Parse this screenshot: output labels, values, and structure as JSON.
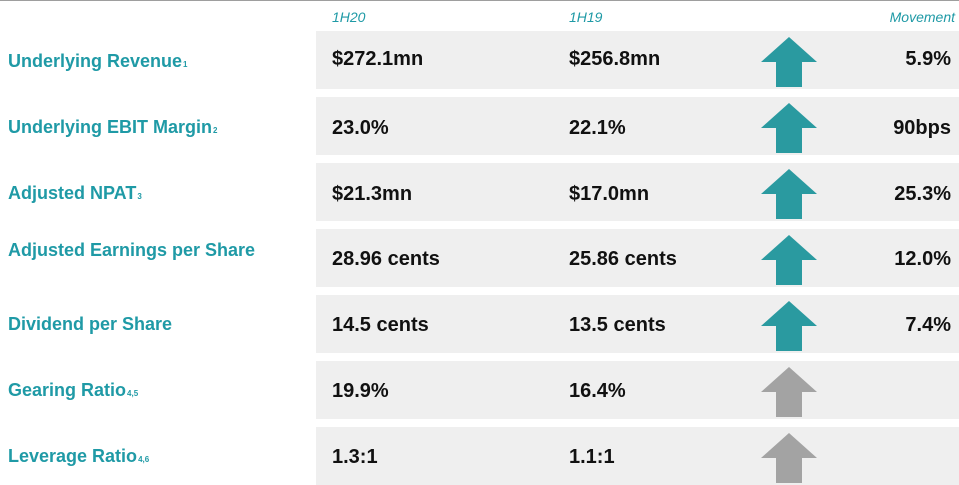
{
  "headers": {
    "current": "1H20",
    "prior": "1H19",
    "movement": "Movement"
  },
  "colors": {
    "label": "#1f9aa6",
    "arrow_up": "#2a9aa0",
    "arrow_neutral": "#a3a3a3",
    "band": "#efefef"
  },
  "rows": [
    {
      "label": "Underlying Revenue",
      "note": "1",
      "current": "$272.1mn",
      "prior": "$256.8mn",
      "movement": "5.9%",
      "arrow": "arrow-up-teal-icon"
    },
    {
      "label": "Underlying EBIT Margin",
      "note": "2",
      "current": "23.0%",
      "prior": "22.1%",
      "movement": "90bps",
      "arrow": "arrow-up-teal-icon"
    },
    {
      "label": "Adjusted NPAT",
      "note": "3",
      "current": "$21.3mn",
      "prior": "$17.0mn",
      "movement": "25.3%",
      "arrow": "arrow-up-teal-icon"
    },
    {
      "label": "Adjusted Earnings per Share",
      "note": "",
      "current": "28.96 cents",
      "prior": "25.86 cents",
      "movement": "12.0%",
      "arrow": "arrow-up-teal-icon"
    },
    {
      "label": "Dividend per Share",
      "note": "",
      "current": "14.5 cents",
      "prior": "13.5 cents",
      "movement": "7.4%",
      "arrow": "arrow-up-teal-icon"
    },
    {
      "label": "Gearing Ratio",
      "note": "4,5",
      "current": "19.9%",
      "prior": "16.4%",
      "movement": "",
      "arrow": "arrow-up-grey-icon"
    },
    {
      "label": "Leverage Ratio",
      "note": "4,6",
      "current": "1.3:1",
      "prior": "1.1:1",
      "movement": "",
      "arrow": "arrow-up-grey-icon"
    }
  ]
}
